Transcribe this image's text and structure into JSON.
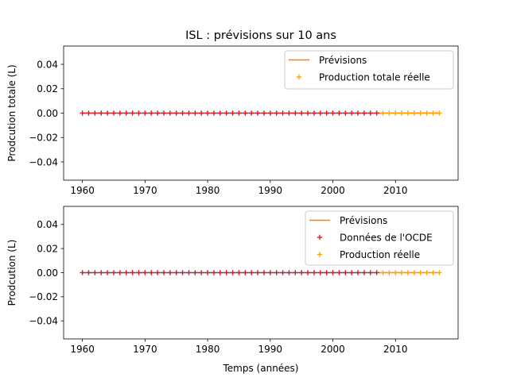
{
  "colors": {
    "blue": "#1f77b4",
    "orange": "#ff7f0e",
    "red": "#e31a1c",
    "dark_orange": "#ffa500"
  },
  "chart_data": [
    {
      "type": "line",
      "title": "ISL : prévisions sur 10 ans",
      "xlabel": "",
      "ylabel": "Prodcution totale (L)",
      "xlim": [
        1957,
        2020
      ],
      "ylim": [
        -0.055,
        0.055
      ],
      "xticks": [
        1960,
        1970,
        1980,
        1990,
        2000,
        2010
      ],
      "yticks": [
        0.04,
        0.02,
        0.0,
        -0.02,
        -0.04
      ],
      "ytick_labels": [
        "0.04",
        "0.02",
        "0.00",
        "−0.02",
        "−0.04"
      ],
      "legend_position": "upper right",
      "series": [
        {
          "name": "",
          "kind": "line",
          "color": "#1f77b4",
          "x": [
            1960,
            2007
          ],
          "y": [
            0,
            0
          ]
        },
        {
          "name": "Prévisions",
          "kind": "line",
          "color": "#ff7f0e",
          "x": [
            2007,
            2017
          ],
          "y": [
            0,
            0
          ]
        },
        {
          "name": "",
          "kind": "scatter",
          "marker": "+",
          "color": "#e31a1c",
          "x_range": [
            1960,
            2007
          ],
          "y": 0
        },
        {
          "name": "Production totale réelle",
          "kind": "scatter",
          "marker": "+",
          "color": "#ffa500",
          "x_range": [
            2008,
            2017
          ],
          "y": 0
        }
      ]
    },
    {
      "type": "line",
      "title": "",
      "xlabel": "Temps (années)",
      "ylabel": "Prodcution (L)",
      "xlim": [
        1957,
        2020
      ],
      "ylim": [
        -0.055,
        0.055
      ],
      "xticks": [
        1960,
        1970,
        1980,
        1990,
        2000,
        2010
      ],
      "yticks": [
        0.04,
        0.02,
        0.0,
        -0.02,
        -0.04
      ],
      "ytick_labels": [
        "0.04",
        "0.02",
        "0.00",
        "−0.02",
        "−0.04"
      ],
      "legend_position": "upper right",
      "series": [
        {
          "name": "",
          "kind": "line",
          "color": "#1f77b4",
          "x": [
            1960,
            2007
          ],
          "y": [
            0,
            0
          ]
        },
        {
          "name": "Prévisions",
          "kind": "line",
          "color": "#ff7f0e",
          "x": [
            2007,
            2017
          ],
          "y": [
            0,
            0
          ]
        },
        {
          "name": "Données de l'OCDE",
          "kind": "scatter",
          "marker": "+",
          "color": "#e31a1c",
          "x_range": [
            1960,
            2007
          ],
          "y": 0
        },
        {
          "name": "Production réelle",
          "kind": "scatter",
          "marker": "+",
          "color": "#ffa500",
          "x_range": [
            2008,
            2017
          ],
          "y": 0
        }
      ]
    }
  ]
}
